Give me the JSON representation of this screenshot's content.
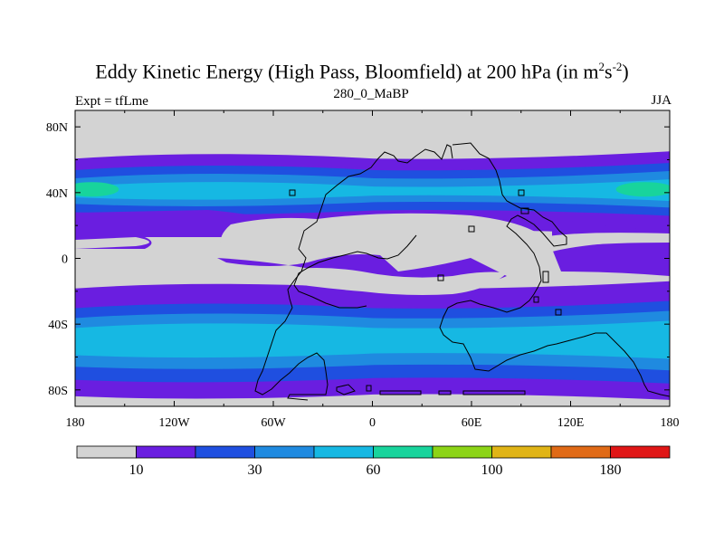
{
  "chart_data": {
    "type": "heatmap",
    "title": "Eddy Kinetic Energy (High Pass, Bloomfield) at 200 hPa (in m",
    "title_sup1": "2",
    "title_mid": "s",
    "title_sup2": "-2",
    "title_end": ")",
    "subtitle_left": "Expt = tfLme",
    "subtitle_center": "280_0_MaBP",
    "subtitle_right": "JJA",
    "x_ticks": [
      "180",
      "120W",
      "60W",
      "0",
      "60E",
      "120E",
      "180"
    ],
    "x_tick_values": [
      -180,
      -120,
      -60,
      0,
      60,
      120,
      180
    ],
    "y_ticks": [
      "80N",
      "40N",
      "0",
      "40S",
      "80S"
    ],
    "y_tick_values": [
      80,
      40,
      0,
      -40,
      -80
    ],
    "xlim": [
      -180,
      180
    ],
    "ylim": [
      -90,
      90
    ],
    "colorbar": {
      "colors": [
        "#d3d3d3",
        "#6a1ee0",
        "#1f4fe0",
        "#1f8ae0",
        "#16b8e3",
        "#18d49c",
        "#8cd416",
        "#e0b416",
        "#e06a16",
        "#e01616"
      ],
      "labels": [
        "10",
        "30",
        "60",
        "100",
        "180"
      ],
      "label_positions": [
        1,
        3,
        5,
        7,
        9
      ]
    },
    "bands": [
      {
        "level": 1,
        "lat_top": 64,
        "lat_bot": 15
      },
      {
        "level": 2,
        "lat_top": 57,
        "lat_bot": 27
      },
      {
        "level": 3,
        "lat_top": 52,
        "lat_bot": 32
      },
      {
        "level": 4,
        "lat_top": 47,
        "lat_bot": 36
      },
      {
        "level": 1,
        "lat_top": -15,
        "lat_bot": -85
      },
      {
        "level": 2,
        "lat_top": -27,
        "lat_bot": -75
      },
      {
        "level": 3,
        "lat_top": -33,
        "lat_bot": -67
      },
      {
        "level": 4,
        "lat_top": -39,
        "lat_bot": -60
      }
    ]
  }
}
